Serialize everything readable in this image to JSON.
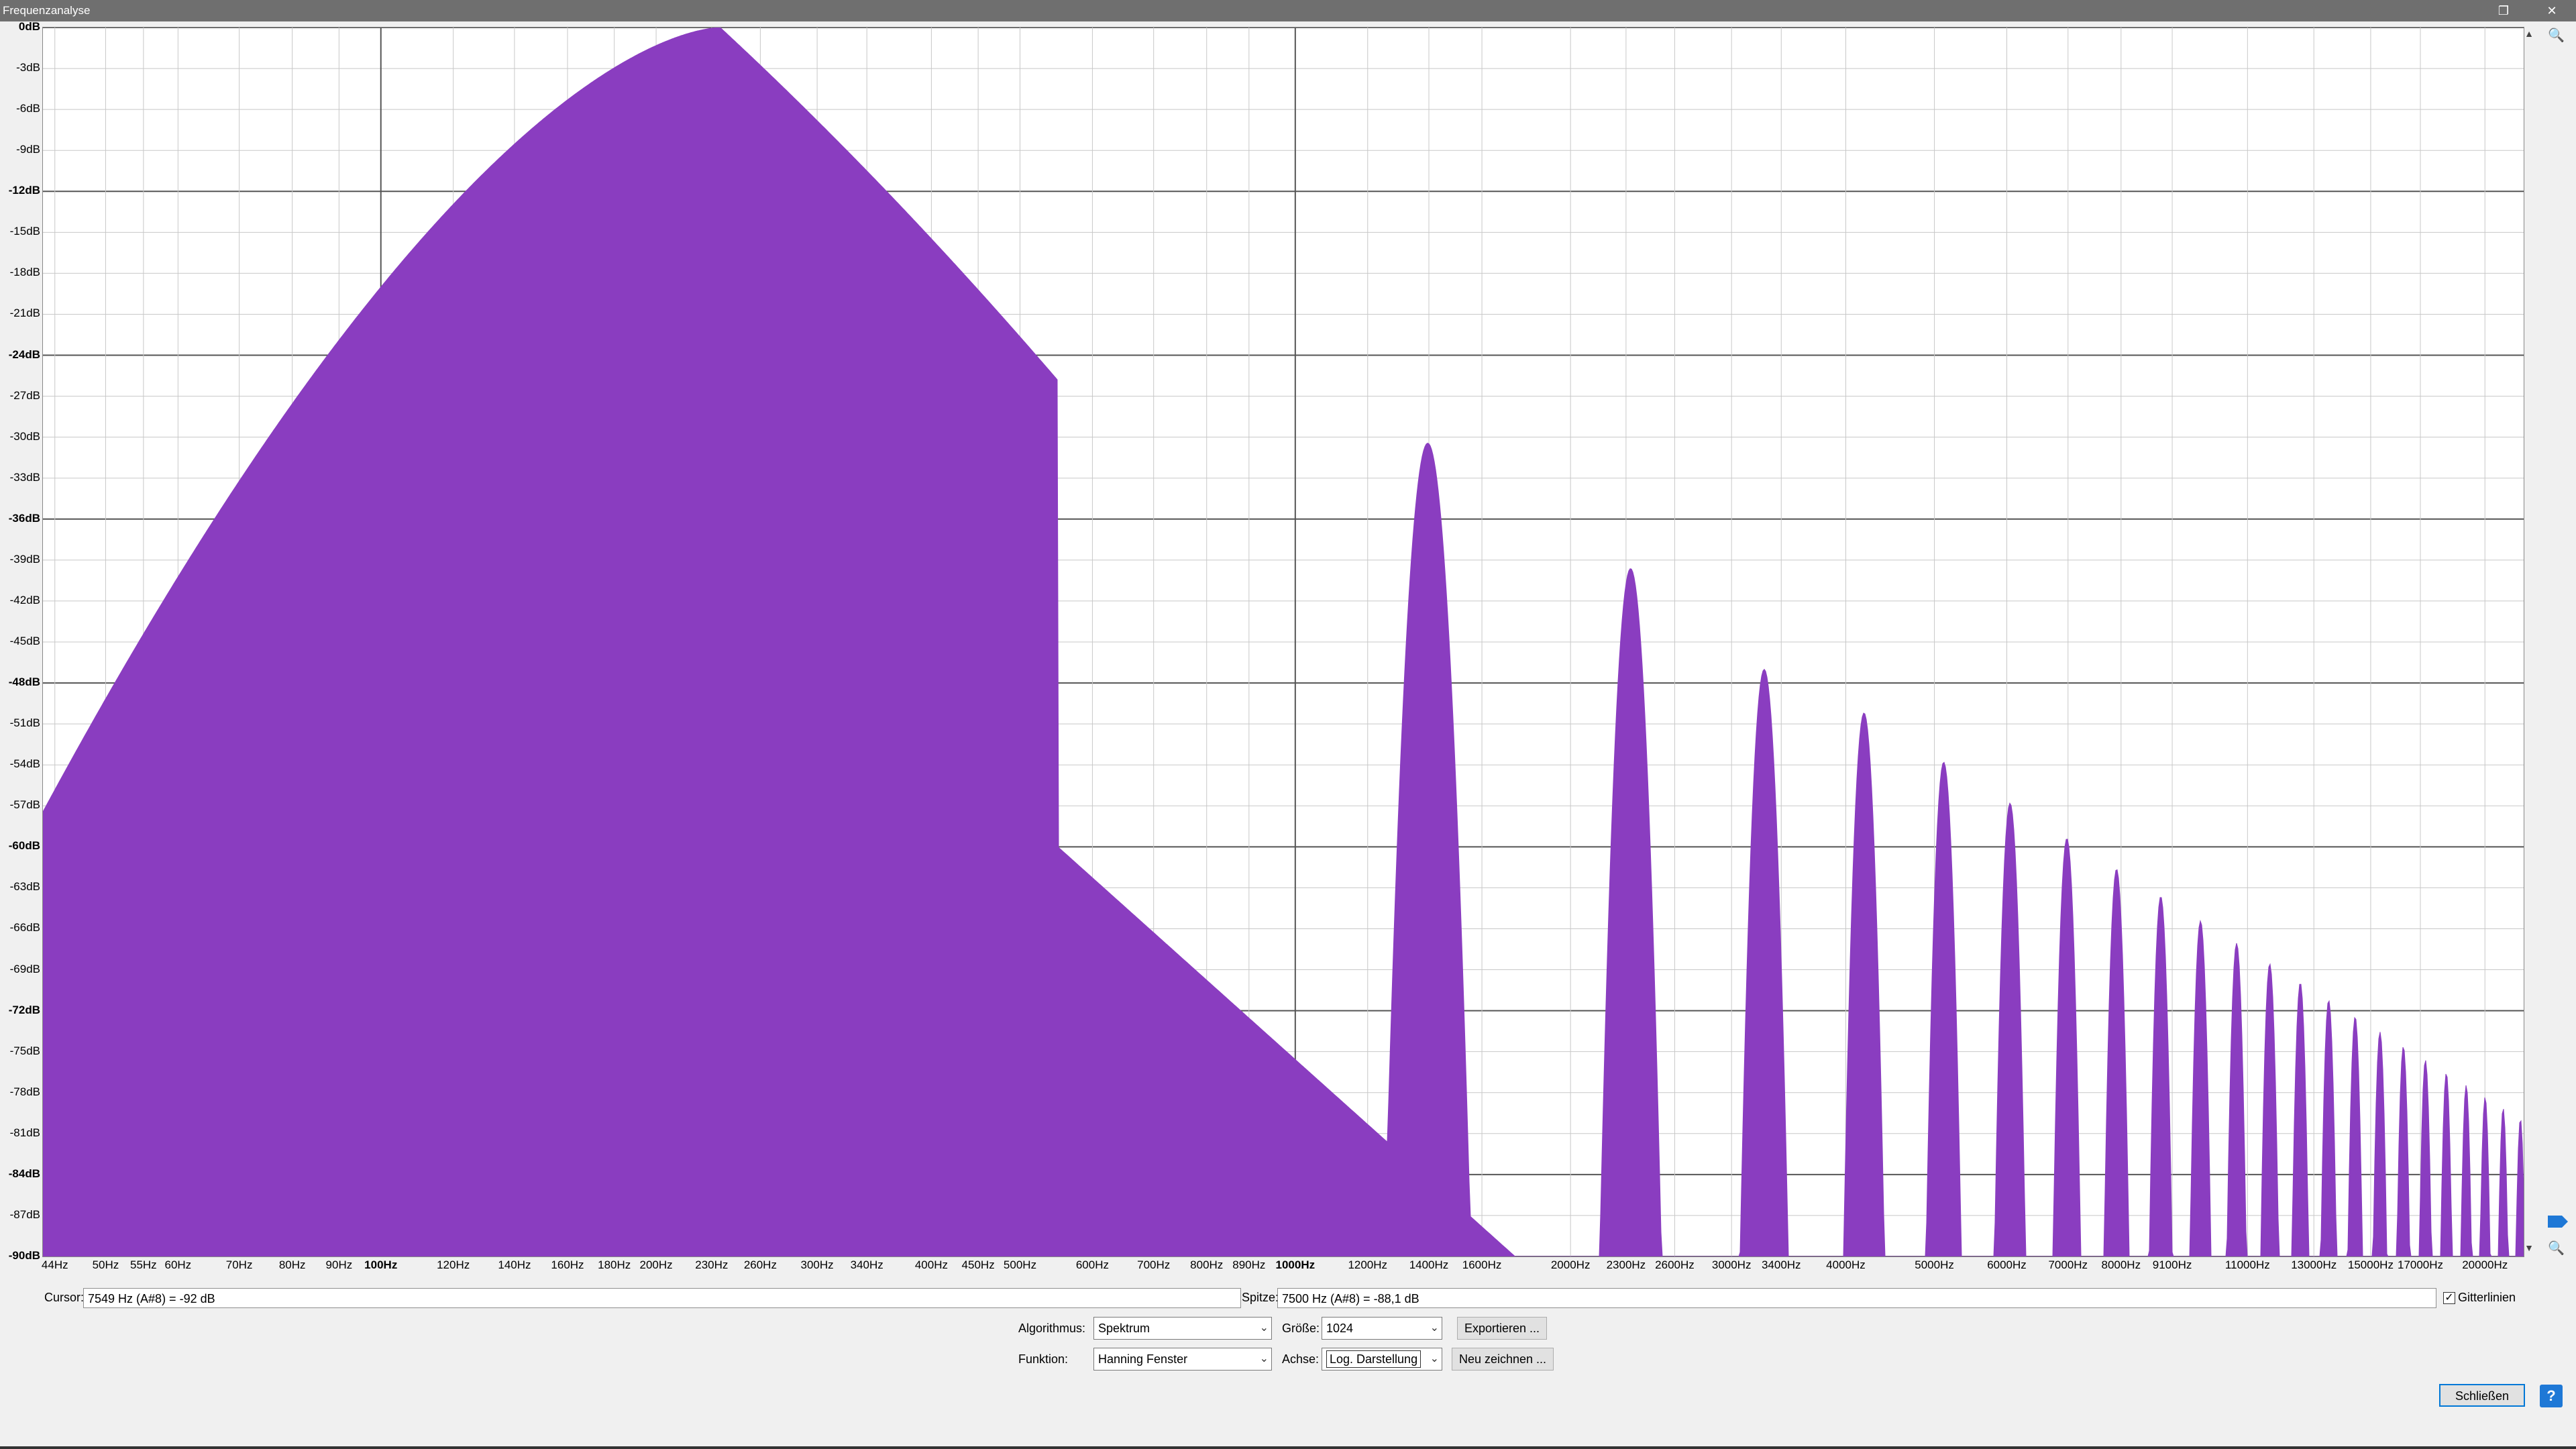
{
  "window": {
    "title": "Frequenzanalyse",
    "restore_icon": "restore-icon",
    "close_icon": "close-icon"
  },
  "spectrum": {
    "fill_color": "#8a3dc0",
    "y_labels": [
      {
        "text": "0dB",
        "bold": true
      },
      {
        "text": "-3dB",
        "bold": false
      },
      {
        "text": "-6dB",
        "bold": false
      },
      {
        "text": "-9dB",
        "bold": false
      },
      {
        "text": "-12dB",
        "bold": true
      },
      {
        "text": "-15dB",
        "bold": false
      },
      {
        "text": "-18dB",
        "bold": false
      },
      {
        "text": "-21dB",
        "bold": false
      },
      {
        "text": "-24dB",
        "bold": true
      },
      {
        "text": "-27dB",
        "bold": false
      },
      {
        "text": "-30dB",
        "bold": false
      },
      {
        "text": "-33dB",
        "bold": false
      },
      {
        "text": "-36dB",
        "bold": true
      },
      {
        "text": "-39dB",
        "bold": false
      },
      {
        "text": "-42dB",
        "bold": false
      },
      {
        "text": "-45dB",
        "bold": false
      },
      {
        "text": "-48dB",
        "bold": true
      },
      {
        "text": "-51dB",
        "bold": false
      },
      {
        "text": "-54dB",
        "bold": false
      },
      {
        "text": "-57dB",
        "bold": false
      },
      {
        "text": "-60dB",
        "bold": true
      },
      {
        "text": "-63dB",
        "bold": false
      },
      {
        "text": "-66dB",
        "bold": false
      },
      {
        "text": "-69dB",
        "bold": false
      },
      {
        "text": "-72dB",
        "bold": true
      },
      {
        "text": "-75dB",
        "bold": false
      },
      {
        "text": "-78dB",
        "bold": false
      },
      {
        "text": "-81dB",
        "bold": false
      },
      {
        "text": "-84dB",
        "bold": true
      },
      {
        "text": "-87dB",
        "bold": false
      },
      {
        "text": "-90dB",
        "bold": true
      }
    ],
    "x_labels": [
      {
        "text": "44Hz",
        "f": 44
      },
      {
        "text": "50Hz",
        "f": 50
      },
      {
        "text": "55Hz",
        "f": 55
      },
      {
        "text": "60Hz",
        "f": 60
      },
      {
        "text": "70Hz",
        "f": 70
      },
      {
        "text": "80Hz",
        "f": 80
      },
      {
        "text": "90Hz",
        "f": 90
      },
      {
        "text": "100Hz",
        "f": 100,
        "bold": true
      },
      {
        "text": "120Hz",
        "f": 120
      },
      {
        "text": "140Hz",
        "f": 140
      },
      {
        "text": "160Hz",
        "f": 160
      },
      {
        "text": "180Hz",
        "f": 180
      },
      {
        "text": "200Hz",
        "f": 200
      },
      {
        "text": "230Hz",
        "f": 230
      },
      {
        "text": "260Hz",
        "f": 260
      },
      {
        "text": "300Hz",
        "f": 300
      },
      {
        "text": "340Hz",
        "f": 340
      },
      {
        "text": "400Hz",
        "f": 400
      },
      {
        "text": "450Hz",
        "f": 450
      },
      {
        "text": "500Hz",
        "f": 500
      },
      {
        "text": "600Hz",
        "f": 600
      },
      {
        "text": "700Hz",
        "f": 700
      },
      {
        "text": "800Hz",
        "f": 800
      },
      {
        "text": "890Hz",
        "f": 890
      },
      {
        "text": "1000Hz",
        "f": 1000,
        "bold": true
      },
      {
        "text": "1200Hz",
        "f": 1200
      },
      {
        "text": "1400Hz",
        "f": 1400
      },
      {
        "text": "1600Hz",
        "f": 1600
      },
      {
        "text": "2000Hz",
        "f": 2000
      },
      {
        "text": "2300Hz",
        "f": 2300
      },
      {
        "text": "2600Hz",
        "f": 2600
      },
      {
        "text": "3000Hz",
        "f": 3000
      },
      {
        "text": "3400Hz",
        "f": 3400
      },
      {
        "text": "4000Hz",
        "f": 4000
      },
      {
        "text": "5000Hz",
        "f": 5000
      },
      {
        "text": "6000Hz",
        "f": 6000
      },
      {
        "text": "7000Hz",
        "f": 7000
      },
      {
        "text": "8000Hz",
        "f": 8000
      },
      {
        "text": "9100Hz",
        "f": 9100
      },
      {
        "text": "11000Hz",
        "f": 11000
      },
      {
        "text": "13000Hz",
        "f": 13000
      },
      {
        "text": "15000Hz",
        "f": 15000
      },
      {
        "text": "17000Hz",
        "f": 17000
      },
      {
        "text": "20000Hz",
        "f": 20000
      }
    ]
  },
  "cursor": {
    "label": "Cursor:",
    "value": "7549 Hz (A#8) = -92 dB"
  },
  "peak": {
    "label": "Spitze:",
    "value": "7500 Hz (A#8) = -88,1 dB"
  },
  "gridlines": {
    "label": "Gitterlinien",
    "checked": true
  },
  "controls": {
    "algorithm_label": "Algorithmus:",
    "algorithm_value": "Spektrum",
    "size_label": "Größe:",
    "size_value": "1024",
    "function_label": "Funktion:",
    "function_value": "Hanning Fenster",
    "axis_label": "Achse:",
    "axis_value": "Log. Darstellung",
    "export_label": "Exportieren ...",
    "redraw_label": "Neu zeichnen ...",
    "close_label": "Schließen",
    "help_label": "?"
  }
}
